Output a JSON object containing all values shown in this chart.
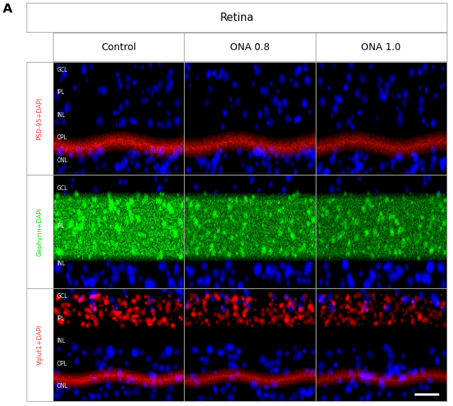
{
  "panel_label": "A",
  "column_header": "Retina",
  "col_labels": [
    "Control",
    "ONA 0.8",
    "ONA 1.0"
  ],
  "row_labels": [
    "PSD-95+DAPI",
    "Gephyrin+DAPI",
    "Vglut1+DAPI"
  ],
  "row_label_colors_main": [
    "#ff3333",
    "#00dd00",
    "#ff3333"
  ],
  "row_label_color_dapi": "#4444ff",
  "row1_layer_labels": [
    "GCL",
    "IPL",
    "INL",
    "OPL",
    "ONL"
  ],
  "row2_layer_labels": [
    "GCL",
    "IPL",
    "INL"
  ],
  "row3_layer_labels": [
    "GCL",
    "IPL",
    "INL",
    "OPL",
    "ONL"
  ],
  "bg_color": "white",
  "border_color": "#aaaaaa",
  "fig_width": 6.5,
  "fig_height": 5.83
}
